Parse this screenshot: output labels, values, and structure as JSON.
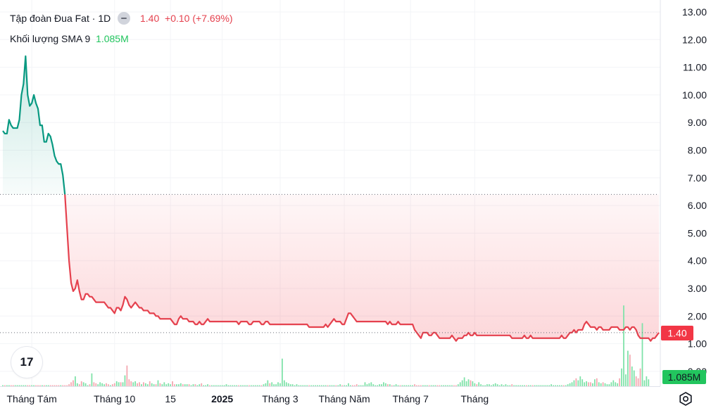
{
  "legend": {
    "symbol_name": "Tập đoàn Đua Fat",
    "separator": "·",
    "interval": "1D",
    "price": "1.40",
    "change": "+0.10",
    "change_pct": "(+7.69%)",
    "volume_label": "Khối lượng SMA 9",
    "volume_value": "1.085M"
  },
  "badges": {
    "price": "1.40",
    "volume": "1.085M"
  },
  "logo": {
    "text": "17"
  },
  "icons": {
    "settings": "gear-icon",
    "eye": "eye-icon"
  },
  "colors": {
    "down": "#e5414e",
    "up": "#089981",
    "volume_up": "#7ee2a8",
    "volume_down": "#f4a7b0",
    "volume_badge": "#22c55e"
  },
  "chart_data": {
    "type": "area",
    "yticks": [
      "13.00",
      "12.00",
      "11.00",
      "10.00",
      "9.00",
      "8.00",
      "7.00",
      "6.00",
      "5.00",
      "4.00",
      "3.00",
      "2.00",
      "1.00",
      "0.00"
    ],
    "ylim": [
      0,
      13
    ],
    "xticks": [
      "Tháng Tám",
      "Tháng 10",
      "15",
      "2025",
      "Tháng 3",
      "Tháng Năm",
      "Tháng 7",
      "Tháng"
    ],
    "xtick_index": [
      14,
      54,
      81,
      106,
      134,
      165,
      197,
      228
    ],
    "baseline": 6.4,
    "last_price": 1.4,
    "series": [
      {
        "values": [
          8.7,
          8.6,
          8.6,
          9.1,
          8.9,
          8.8,
          8.8,
          8.8,
          9.1,
          10.0,
          10.4,
          11.4,
          10.0,
          9.6,
          9.7,
          10.0,
          9.7,
          9.5,
          8.9,
          8.9,
          8.3,
          8.3,
          8.6,
          8.5,
          8.2,
          7.8,
          7.6,
          7.5,
          7.5,
          7.1,
          6.4,
          5.2,
          4.0,
          3.2,
          2.9,
          3.0,
          3.3,
          2.9,
          2.6,
          2.6,
          2.8,
          2.8,
          2.7,
          2.7,
          2.6,
          2.5,
          2.5,
          2.5,
          2.5,
          2.5,
          2.4,
          2.3,
          2.3,
          2.2,
          2.1,
          2.3,
          2.3,
          2.2,
          2.4,
          2.7,
          2.6,
          2.4,
          2.3,
          2.4,
          2.5,
          2.4,
          2.3,
          2.3,
          2.2,
          2.2,
          2.2,
          2.1,
          2.1,
          2.1,
          2.0,
          2.0,
          1.9,
          1.9,
          1.9,
          1.9,
          1.9,
          1.9,
          1.8,
          1.7,
          1.7,
          1.9,
          2.0,
          1.9,
          1.9,
          1.9,
          1.8,
          1.8,
          1.8,
          1.7,
          1.7,
          1.8,
          1.7,
          1.7,
          1.8,
          1.9,
          1.8,
          1.8,
          1.8,
          1.8,
          1.8,
          1.8,
          1.8,
          1.8,
          1.8,
          1.8,
          1.8,
          1.8,
          1.8,
          1.8,
          1.7,
          1.8,
          1.8,
          1.8,
          1.8,
          1.7,
          1.7,
          1.8,
          1.8,
          1.8,
          1.8,
          1.7,
          1.7,
          1.8,
          1.8,
          1.7,
          1.7,
          1.7,
          1.7,
          1.7,
          1.7,
          1.7,
          1.7,
          1.7,
          1.7,
          1.7,
          1.7,
          1.7,
          1.7,
          1.7,
          1.7,
          1.7,
          1.7,
          1.7,
          1.6,
          1.6,
          1.6,
          1.6,
          1.6,
          1.6,
          1.6,
          1.6,
          1.7,
          1.6,
          1.7,
          1.8,
          1.9,
          1.8,
          1.8,
          1.8,
          1.7,
          1.7,
          1.9,
          2.1,
          2.1,
          2.0,
          1.9,
          1.8,
          1.8,
          1.8,
          1.8,
          1.8,
          1.8,
          1.8,
          1.8,
          1.8,
          1.8,
          1.8,
          1.8,
          1.8,
          1.8,
          1.8,
          1.7,
          1.8,
          1.7,
          1.7,
          1.7,
          1.8,
          1.7,
          1.7,
          1.7,
          1.7,
          1.7,
          1.7,
          1.7,
          1.5,
          1.4,
          1.3,
          1.2,
          1.4,
          1.4,
          1.4,
          1.3,
          1.3,
          1.4,
          1.4,
          1.3,
          1.2,
          1.2,
          1.2,
          1.2,
          1.2,
          1.2,
          1.3,
          1.2,
          1.1,
          1.2,
          1.2,
          1.2,
          1.3,
          1.3,
          1.4,
          1.3,
          1.3,
          1.4,
          1.3,
          1.3,
          1.3,
          1.3,
          1.3,
          1.3,
          1.3,
          1.3,
          1.3,
          1.3,
          1.3,
          1.3,
          1.3,
          1.3,
          1.3,
          1.3,
          1.3,
          1.2,
          1.2,
          1.2,
          1.2,
          1.2,
          1.2,
          1.3,
          1.2,
          1.2,
          1.3,
          1.2,
          1.2,
          1.2,
          1.2,
          1.2,
          1.2,
          1.2,
          1.2,
          1.2,
          1.2,
          1.2,
          1.2,
          1.2,
          1.2,
          1.3,
          1.2,
          1.2,
          1.3,
          1.4,
          1.4,
          1.5,
          1.4,
          1.5,
          1.5,
          1.5,
          1.7,
          1.8,
          1.7,
          1.6,
          1.6,
          1.6,
          1.5,
          1.6,
          1.6,
          1.5,
          1.5,
          1.5,
          1.5,
          1.6,
          1.6,
          1.6,
          1.6,
          1.5,
          1.5,
          1.5,
          1.6,
          1.6,
          1.5,
          1.6,
          1.6,
          1.5,
          1.3,
          1.2,
          1.2,
          1.2,
          1.2,
          1.2,
          1.1,
          1.2,
          1.2,
          1.3,
          1.4
        ]
      }
    ],
    "volume_bars": [
      0.05,
      0.05,
      0.05,
      0.05,
      0.05,
      0.05,
      0.05,
      0.05,
      0.05,
      0.05,
      0.05,
      0.05,
      0.05,
      0.05,
      0.05,
      0.05,
      0.05,
      0.05,
      0.05,
      0.05,
      0.05,
      0.05,
      0.05,
      0.05,
      0.05,
      0.05,
      0.05,
      0.05,
      0.05,
      0.05,
      0.05,
      0.05,
      0.1,
      0.2,
      0.3,
      0.5,
      0.15,
      0.1,
      0.25,
      0.2,
      0.15,
      0.05,
      0.1,
      0.65,
      0.2,
      0.15,
      0.1,
      0.2,
      0.15,
      0.1,
      0.15,
      0.1,
      0.05,
      0.1,
      0.15,
      0.25,
      0.2,
      0.2,
      0.2,
      0.55,
      1.05,
      0.35,
      0.25,
      0.2,
      0.25,
      0.15,
      0.2,
      0.1,
      0.2,
      0.15,
      0.1,
      0.25,
      0.15,
      0.1,
      0.1,
      0.3,
      0.15,
      0.1,
      0.2,
      0.1,
      0.15,
      0.1,
      0.25,
      0.1,
      0.1,
      0.1,
      0.15,
      0.1,
      0.1,
      0.1,
      0.1,
      0.05,
      0.1,
      0.1,
      0.05,
      0.1,
      0.15,
      0.05,
      0.05,
      0.1,
      0.05,
      0.05,
      0.05,
      0.05,
      0.05,
      0.05,
      0.05,
      0.05,
      0.1,
      0.05,
      0.05,
      0.05,
      0.05,
      0.05,
      0.05,
      0.05,
      0.05,
      0.05,
      0.05,
      0.05,
      0.05,
      0.05,
      0.05,
      0.05,
      0.05,
      0.05,
      0.1,
      0.15,
      0.3,
      0.15,
      0.2,
      0.1,
      0.1,
      0.2,
      0.15,
      1.4,
      0.3,
      0.2,
      0.15,
      0.1,
      0.1,
      0.05,
      0.1,
      0.05,
      0.05,
      0.05,
      0.05,
      0.05,
      0.05,
      0.05,
      0.05,
      0.05,
      0.05,
      0.05,
      0.05,
      0.05,
      0.05,
      0.05,
      0.05,
      0.05,
      0.05,
      0.05,
      0.05,
      0.1,
      0.05,
      0.05,
      0.05,
      0.15,
      0.05,
      0.05,
      0.05,
      0.1,
      0.05,
      0.05,
      0.05,
      0.2,
      0.1,
      0.15,
      0.2,
      0.1,
      0.05,
      0.05,
      0.1,
      0.1,
      0.2,
      0.15,
      0.1,
      0.1,
      0.05,
      0.05,
      0.1,
      0.05,
      0.05,
      0.05,
      0.05,
      0.05,
      0.05,
      0.05,
      0.05,
      0.1,
      0.05,
      0.05,
      0.05,
      0.05,
      0.05,
      0.05,
      0.05,
      0.05,
      0.05,
      0.05,
      0.05,
      0.05,
      0.05,
      0.05,
      0.05,
      0.05,
      0.05,
      0.05,
      0.05,
      0.05,
      0.1,
      0.2,
      0.3,
      0.45,
      0.25,
      0.35,
      0.3,
      0.25,
      0.15,
      0.1,
      0.2,
      0.1,
      0.05,
      0.05,
      0.1,
      0.1,
      0.05,
      0.1,
      0.15,
      0.1,
      0.05,
      0.1,
      0.05,
      0.1,
      0.05,
      0.05,
      0.1,
      0.05,
      0.05,
      0.05,
      0.05,
      0.05,
      0.05,
      0.05,
      0.05,
      0.05,
      0.05,
      0.05,
      0.05,
      0.05,
      0.05,
      0.05,
      0.05,
      0.05,
      0.05,
      0.1,
      0.05,
      0.05,
      0.05,
      0.05,
      0.05,
      0.05,
      0.05,
      0.1,
      0.15,
      0.2,
      0.3,
      0.4,
      0.3,
      0.5,
      0.35,
      0.2,
      0.25,
      0.2,
      0.2,
      0.15,
      0.35,
      0.4,
      0.2,
      0.15,
      0.2,
      0.15,
      0.1,
      0.1,
      0.2,
      0.3,
      0.2,
      0.15,
      0.4,
      0.9,
      4.1,
      0.6,
      1.8,
      1.6,
      1.0,
      0.8,
      0.5,
      0.4,
      0.9,
      3.2,
      0.3,
      0.5,
      0.35
    ]
  }
}
